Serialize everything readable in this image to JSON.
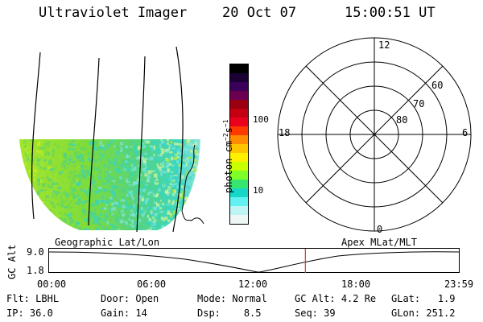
{
  "header": {
    "instrument": "Ultraviolet Imager",
    "date": "20 Oct 07",
    "time": "15:00:51 UT"
  },
  "colorbar": {
    "unit_label": "photon cm",
    "unit_exp1": "−2",
    "unit_s": "s",
    "unit_exp2": "−1",
    "tick_100": "100",
    "tick_10": "10",
    "colors": [
      "#000000",
      "#1a0033",
      "#3a005a",
      "#6b0050",
      "#9a0010",
      "#c40010",
      "#e8001c",
      "#ff3a00",
      "#ff8c00",
      "#ffc400",
      "#fff000",
      "#c8ff00",
      "#7fff2a",
      "#37e66e",
      "#17d7c8",
      "#63f0f0",
      "#bdf5f5",
      "#eef5f5"
    ]
  },
  "polar": {
    "mlt_12": "12",
    "mlt_18": "18",
    "mlt_6": "6",
    "mlt_0": "0",
    "lat_60": "60",
    "lat_70": "70",
    "lat_80": "80"
  },
  "timeline": {
    "left_title": "Geographic Lat/Lon",
    "right_title": "Apex MLat/MLT",
    "yaxis": "GC Alt",
    "y_top": "9.0",
    "y_bot": "1.8",
    "ticks": [
      "00:00",
      "06:00",
      "12:00",
      "18:00",
      "23:59"
    ],
    "marker_time_hours": 15.01
  },
  "footer": {
    "row1": [
      {
        "label": "Flt:",
        "value": "LBHL"
      },
      {
        "label": "Door:",
        "value": "Open"
      },
      {
        "label": "Mode:",
        "value": "Normal"
      },
      {
        "label": "GC Alt:",
        "value": "4.2 Re"
      },
      {
        "label": "GLat:",
        "value": "1.9"
      }
    ],
    "row2": [
      {
        "label": "IP:",
        "value": "36.0"
      },
      {
        "label": "Gain:",
        "value": "14"
      },
      {
        "label": "Dsp:",
        "value": "8.5"
      },
      {
        "label": "Seq:",
        "value": "39"
      },
      {
        "label": "GLon:",
        "value": "251.2"
      }
    ]
  }
}
